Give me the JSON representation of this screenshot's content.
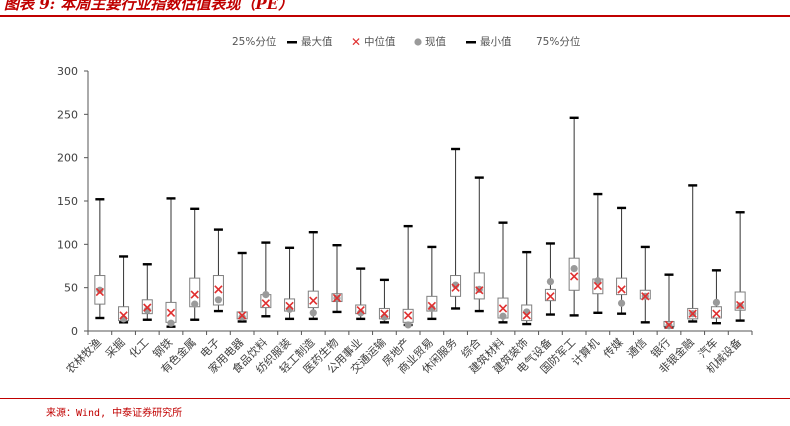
{
  "figure": {
    "title": "图表 9: 本周主要行业指数估值表现（PE）",
    "source": "来源：Wind, 中泰证券研究所"
  },
  "colors": {
    "accent": "#c00000",
    "box": "#7f7f7f",
    "whisker": "#333333",
    "median_marker": "#e03030",
    "current_marker": "#9a9a9a",
    "extreme_marker": "#000000"
  },
  "chart_data": {
    "type": "box",
    "legend": {
      "position": "top-center",
      "items": [
        "25%分位",
        "最大值",
        "中位值",
        "现值",
        "最小值",
        "75%分位"
      ]
    },
    "ylim": [
      0,
      300
    ],
    "yticks": [
      0,
      50,
      100,
      150,
      200,
      250,
      300
    ],
    "grid": false,
    "xlabel": "",
    "ylabel": "",
    "categories": [
      "农林牧渔",
      "采掘",
      "化工",
      "钢铁",
      "有色金属",
      "电子",
      "家用电器",
      "食品饮料",
      "纺织服装",
      "轻工制造",
      "医药生物",
      "公用事业",
      "交通运输",
      "房地产",
      "商业贸易",
      "休闲服务",
      "综合",
      "建筑材料",
      "建筑装饰",
      "电气设备",
      "国防军工",
      "计算机",
      "传媒",
      "通信",
      "银行",
      "非银金融",
      "汽车",
      "机械设备"
    ],
    "max": [
      152,
      86,
      77,
      153,
      141,
      117,
      90,
      102,
      96,
      114,
      99,
      72,
      59,
      121,
      97,
      210,
      177,
      125,
      91,
      101,
      246,
      158,
      142,
      97,
      65,
      168,
      70,
      137
    ],
    "q75": [
      64,
      28,
      36,
      33,
      61,
      64,
      22,
      42,
      37,
      46,
      43,
      30,
      26,
      25,
      40,
      64,
      67,
      38,
      30,
      48,
      84,
      60,
      61,
      47,
      11,
      26,
      28,
      45
    ],
    "median": [
      45,
      18,
      27,
      21,
      42,
      48,
      18,
      32,
      29,
      35,
      38,
      24,
      20,
      18,
      29,
      50,
      47,
      26,
      18,
      40,
      63,
      52,
      48,
      40,
      7,
      20,
      20,
      30
    ],
    "q25": [
      31,
      12,
      20,
      10,
      28,
      30,
      14,
      27,
      23,
      27,
      34,
      20,
      14,
      10,
      23,
      40,
      37,
      15,
      12,
      35,
      47,
      43,
      42,
      37,
      5,
      14,
      15,
      24
    ],
    "min": [
      15,
      10,
      13,
      5,
      13,
      23,
      11,
      17,
      14,
      14,
      22,
      14,
      10,
      7,
      14,
      26,
      23,
      10,
      8,
      19,
      18,
      21,
      20,
      10,
      4,
      11,
      9,
      12
    ],
    "current": [
      47,
      14,
      24,
      9,
      31,
      36,
      16,
      42,
      25,
      21,
      38,
      21,
      16,
      7,
      26,
      53,
      48,
      17,
      22,
      57,
      72,
      58,
      32,
      40,
      6,
      20,
      33,
      29
    ]
  }
}
